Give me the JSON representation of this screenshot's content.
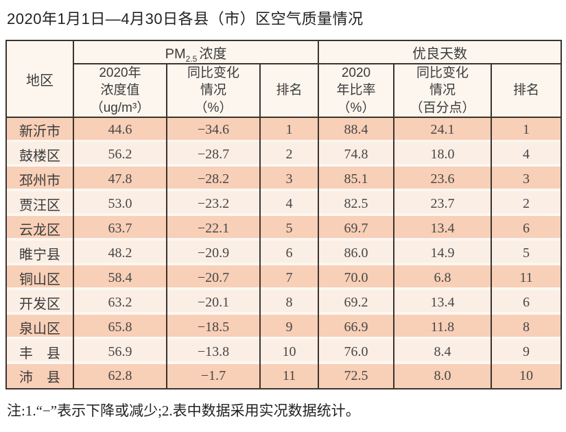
{
  "title": "2020年1月1日—4月30日各县（市）区空气质量情况",
  "colors": {
    "line": "#3a332e",
    "row_dark": "#f8cfb7",
    "row_light": "#fbeee5",
    "header_bg": "#fdf6ee",
    "row_gap": "#fdf7f1",
    "text": "#3b3b3b",
    "title_text": "#222222"
  },
  "table": {
    "region_header": "地区",
    "groups": {
      "pm": {
        "main": "PM",
        "sub": "2.5",
        "rest": "浓度"
      },
      "good": "优良天数"
    },
    "sub_headers": [
      "2020年\n浓度值\n（ug/m³）",
      "同比变化\n情况\n（%）",
      "排名",
      "2020\n年比率\n（%）",
      "同比变化\n情况\n（百分点）",
      "排名"
    ],
    "rows": [
      {
        "region": "新沂市",
        "pm_value": "44.6",
        "pm_change": "−34.6",
        "pm_rank": "1",
        "good_rate": "88.4",
        "good_change": "24.1",
        "good_rank": "1"
      },
      {
        "region": "鼓楼区",
        "pm_value": "56.2",
        "pm_change": "−28.7",
        "pm_rank": "2",
        "good_rate": "74.8",
        "good_change": "18.0",
        "good_rank": "4"
      },
      {
        "region": "邳州市",
        "pm_value": "47.8",
        "pm_change": "−28.2",
        "pm_rank": "3",
        "good_rate": "85.1",
        "good_change": "23.6",
        "good_rank": "3"
      },
      {
        "region": "贾汪区",
        "pm_value": "53.0",
        "pm_change": "−23.2",
        "pm_rank": "4",
        "good_rate": "82.5",
        "good_change": "23.7",
        "good_rank": "2"
      },
      {
        "region": "云龙区",
        "pm_value": "63.7",
        "pm_change": "−22.1",
        "pm_rank": "5",
        "good_rate": "69.7",
        "good_change": "13.4",
        "good_rank": "6"
      },
      {
        "region": "睢宁县",
        "pm_value": "48.2",
        "pm_change": "−20.9",
        "pm_rank": "6",
        "good_rate": "86.0",
        "good_change": "14.9",
        "good_rank": "5"
      },
      {
        "region": "铜山区",
        "pm_value": "58.4",
        "pm_change": "−20.7",
        "pm_rank": "7",
        "good_rate": "70.0",
        "good_change": "6.8",
        "good_rank": "11"
      },
      {
        "region": "开发区",
        "pm_value": "63.2",
        "pm_change": "−20.1",
        "pm_rank": "8",
        "good_rate": "69.2",
        "good_change": "13.4",
        "good_rank": "6"
      },
      {
        "region": "泉山区",
        "pm_value": "65.8",
        "pm_change": "−18.5",
        "pm_rank": "9",
        "good_rate": "66.9",
        "good_change": "11.8",
        "good_rank": "8"
      },
      {
        "region": "丰县",
        "pm_value": "56.9",
        "pm_change": "−13.8",
        "pm_rank": "10",
        "good_rate": "76.0",
        "good_change": "8.4",
        "good_rank": "9"
      },
      {
        "region": "沛县",
        "pm_value": "62.8",
        "pm_change": "−1.7",
        "pm_rank": "11",
        "good_rate": "72.5",
        "good_change": "8.0",
        "good_rank": "10"
      }
    ]
  },
  "footnote": "注:1.“−”表示下降或减少;2.表中数据采用实况数据统计。"
}
